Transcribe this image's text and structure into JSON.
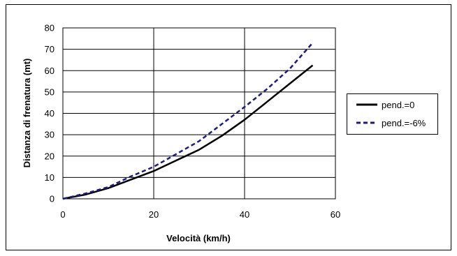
{
  "chart_data": {
    "type": "line",
    "title": "",
    "xlabel": "Velocità (km/h)",
    "ylabel": "Distanza di frenatura (mt)",
    "xlim": [
      0,
      60
    ],
    "ylim": [
      0,
      80
    ],
    "xticks": [
      0,
      20,
      40,
      60
    ],
    "yticks": [
      0,
      10,
      20,
      30,
      40,
      50,
      60,
      70,
      80
    ],
    "grid": true,
    "legend_position": "right",
    "series": [
      {
        "name": "pend.=0",
        "style": "solid",
        "color": "#000000",
        "x": [
          0,
          5,
          10,
          15,
          20,
          25,
          30,
          35,
          40,
          45,
          50,
          55
        ],
        "y": [
          0,
          2,
          5,
          9,
          13,
          18,
          23,
          29.5,
          37,
          45.5,
          54,
          62.5
        ]
      },
      {
        "name": "pend.=-6%",
        "style": "dashed",
        "color": "#1c1c80",
        "x": [
          0,
          5,
          10,
          15,
          20,
          25,
          30,
          35,
          40,
          45,
          50,
          55
        ],
        "y": [
          0,
          2.5,
          5.5,
          10.5,
          15,
          21,
          27,
          35,
          43,
          51.5,
          61,
          73
        ]
      }
    ]
  }
}
